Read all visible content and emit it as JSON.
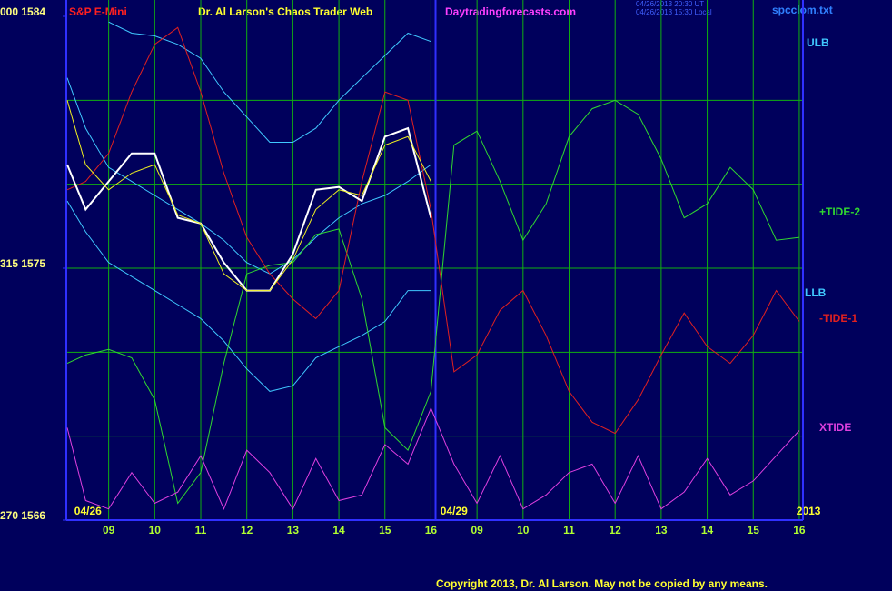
{
  "chart_data": {
    "type": "line",
    "symbol": "S&P E-Mini",
    "title": "Dr. Al Larson's Chaos Trader Web",
    "site": "Daytradingforecasts.com",
    "timestamps": [
      "04/26/2013 20:30 UT",
      "04/26/2013 15:30 Local"
    ],
    "file": "spcclom.txt",
    "copyright": "Copyright 2013, Dr. Al Larson. May not be copied by any means.",
    "date_labels": [
      {
        "value": -0.45,
        "label": "04/26"
      },
      {
        "value": 7.5,
        "label": "04/29"
      },
      {
        "value": 15.2,
        "label": "2013"
      }
    ],
    "xlim": [
      -0.92,
      15.08
    ],
    "xticks": [
      {
        "value": 0,
        "label": "09"
      },
      {
        "value": 1,
        "label": "10"
      },
      {
        "value": 2,
        "label": "11"
      },
      {
        "value": 3,
        "label": "12"
      },
      {
        "value": 4,
        "label": "13"
      },
      {
        "value": 5,
        "label": "14"
      },
      {
        "value": 6,
        "label": "15"
      },
      {
        "value": 7,
        "label": "16"
      },
      {
        "value": 8,
        "label": "09"
      },
      {
        "value": 9,
        "label": "10"
      },
      {
        "value": 10,
        "label": "11"
      },
      {
        "value": 11,
        "label": "12"
      },
      {
        "value": 12,
        "label": "13"
      },
      {
        "value": 13,
        "label": "14"
      },
      {
        "value": 14,
        "label": "15"
      },
      {
        "value": 15,
        "label": "16"
      }
    ],
    "ylim": [
      1566,
      1584
    ],
    "yticks": [
      {
        "value": 1584,
        "label": "000 1584"
      },
      {
        "value": 1575,
        "label": "315 1575"
      },
      {
        "value": 1566,
        "label": "270 1566"
      }
    ],
    "ygrid": [
      1569,
      1572,
      1575,
      1578,
      1581
    ],
    "marker_x": 7.1,
    "grid": true,
    "x": [
      -0.9,
      -0.5,
      0,
      0.5,
      1,
      1.5,
      2,
      2.5,
      3,
      3.5,
      4,
      4.5,
      5,
      5.5,
      6,
      6.5,
      7,
      7.5,
      8,
      8.5,
      9,
      9.5,
      10,
      10.5,
      11,
      11.5,
      12,
      12.5,
      13,
      13.5,
      14,
      14.5,
      15
    ],
    "series": [
      {
        "name": "ULB",
        "color": "#40c8ff",
        "values": [
          null,
          null,
          1583.8,
          1583.4,
          1583.3,
          1583.0,
          1582.5,
          1581.3,
          1580.4,
          1579.5,
          1579.5,
          1580.0,
          1581.0,
          1581.8,
          1582.6,
          1583.4,
          1583.1,
          null,
          null,
          null,
          null,
          null,
          null,
          null,
          null,
          null,
          null,
          null,
          null,
          null,
          null,
          null,
          null
        ]
      },
      {
        "color": "#40c8ff",
        "values": [
          1581.8,
          1580.0,
          1578.6,
          1578.1,
          1577.6,
          1577.1,
          1576.6,
          1576.0,
          1575.2,
          1574.8,
          1575.3,
          1576.1,
          1576.8,
          1577.3,
          1577.6,
          1578.1,
          1578.7,
          null,
          null,
          null,
          null,
          null,
          null,
          null,
          null,
          null,
          null,
          null,
          null,
          null,
          null,
          null,
          null
        ]
      },
      {
        "name": "LLB",
        "color": "#40c8ff",
        "values": [
          1577.4,
          1576.3,
          1575.2,
          1574.7,
          1574.2,
          1573.7,
          1573.2,
          1572.4,
          1571.4,
          1570.6,
          1570.8,
          1571.8,
          1572.2,
          1572.6,
          1573.1,
          1574.2,
          1574.2,
          null,
          null,
          null,
          null,
          null,
          null,
          null,
          null,
          null,
          null,
          null,
          null,
          null,
          null,
          null,
          null
        ]
      },
      {
        "name": "+TIDE-2",
        "color": "#30d830",
        "values": [
          1571.6,
          1571.9,
          1572.1,
          1571.8,
          1570.3,
          1566.6,
          1567.7,
          1571.6,
          1574.8,
          1575.1,
          1575.2,
          1576.2,
          1576.4,
          1573.9,
          1569.3,
          1568.5,
          1570.6,
          1579.4,
          1579.9,
          1578.1,
          1576.0,
          1577.3,
          1579.7,
          1580.7,
          1581.0,
          1580.5,
          1578.9,
          1576.8,
          1577.3,
          1578.6,
          1577.8,
          1576.0,
          1576.1
        ]
      },
      {
        "name": "-TIDE-1",
        "color": "#e02020",
        "values": [
          1577.8,
          1578.1,
          1579.1,
          1581.3,
          1583.0,
          1583.6,
          1581.3,
          1578.4,
          1576.1,
          1574.8,
          1573.9,
          1573.2,
          1574.2,
          1578.1,
          1581.3,
          1581.0,
          1577.1,
          1571.3,
          1571.9,
          1573.5,
          1574.2,
          1572.6,
          1570.6,
          1569.5,
          1569.1,
          1570.3,
          1571.9,
          1573.4,
          1572.2,
          1571.6,
          1572.6,
          1574.2,
          1573.1
        ]
      },
      {
        "name": "XTIDE",
        "color": "#e040e0",
        "values": [
          1569.3,
          1566.7,
          1566.4,
          1567.7,
          1566.6,
          1567.0,
          1568.3,
          1566.4,
          1568.5,
          1567.7,
          1566.4,
          1568.2,
          1566.7,
          1566.9,
          1568.7,
          1568.0,
          1570.0,
          1568.0,
          1566.6,
          1568.3,
          1566.4,
          1566.9,
          1567.7,
          1568.0,
          1566.6,
          1568.3,
          1566.4,
          1567.0,
          1568.2,
          1566.9,
          1567.4,
          1568.3,
          1569.2
        ]
      },
      {
        "color": "#ffffff",
        "values": [
          1578.7,
          1577.1,
          1578.1,
          1579.1,
          1579.1,
          1576.8,
          1576.6,
          1575.2,
          1574.2,
          1574.2,
          1575.5,
          1577.8,
          1577.9,
          1577.4,
          1579.7,
          1580.0,
          1576.8,
          null,
          null,
          null,
          null,
          null,
          null,
          null,
          null,
          null,
          null,
          null,
          null,
          null,
          null,
          null,
          null
        ]
      },
      {
        "color": "#f0f020",
        "values": [
          1581.0,
          1578.7,
          1577.8,
          1578.4,
          1578.7,
          1576.9,
          1576.6,
          1574.8,
          1574.2,
          1574.2,
          1575.3,
          1577.1,
          1577.8,
          1577.6,
          1579.4,
          1579.7,
          1578.1,
          null,
          null,
          null,
          null,
          null,
          null,
          null,
          null,
          null,
          null,
          null,
          null,
          null,
          null,
          null,
          null
        ]
      }
    ]
  }
}
